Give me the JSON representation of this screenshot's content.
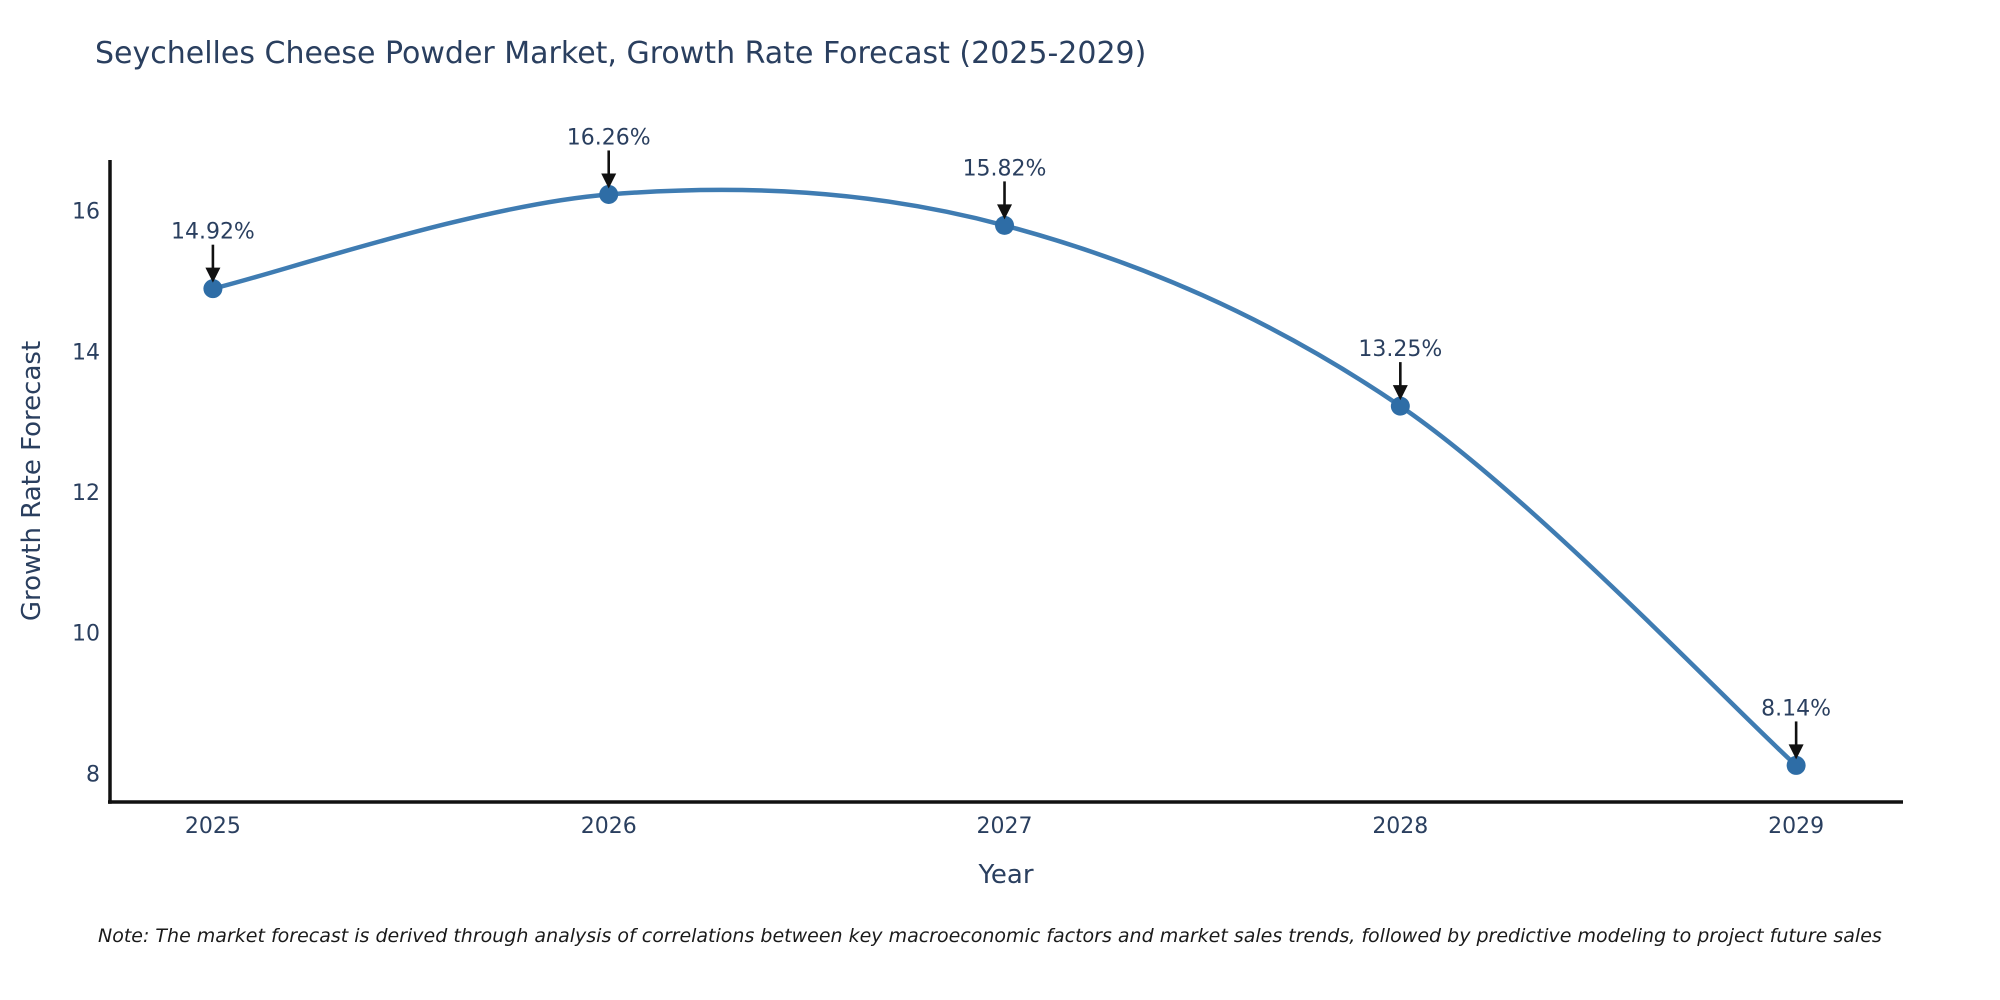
{
  "note": "Note: The market forecast is derived through analysis of correlations between key macroeconomic factors and market sales trends, followed by predictive modeling to project future sales",
  "chart_data": {
    "type": "line",
    "title": "Seychelles Cheese Powder Market, Growth Rate Forecast (2025-2029)",
    "xlabel": "Year",
    "ylabel": "Growth Rate Forecast",
    "x": [
      2025,
      2026,
      2027,
      2028,
      2029
    ],
    "series": [
      {
        "name": "Growth Rate Forecast",
        "values": [
          14.92,
          16.26,
          15.82,
          13.25,
          8.14
        ]
      }
    ],
    "point_labels": [
      "14.92%",
      "16.26%",
      "15.82%",
      "13.25%",
      "8.14%"
    ],
    "xticks": [
      2025,
      2026,
      2027,
      2028,
      2029
    ],
    "yticks": [
      8,
      10,
      12,
      14,
      16
    ],
    "xlim": [
      2024.74,
      2029.27
    ],
    "ylim": [
      7.62,
      16.75
    ],
    "line_shape": "spline",
    "grid": false,
    "legend": false,
    "annotation_style": "value label with black arrow pointing down to marker",
    "colors": {
      "line": "#3f7cb2",
      "marker": "#2e6da6",
      "arrow": "#111111",
      "text": "#2a3f5f",
      "axis": "#111111",
      "note_text": "#1a1a1a",
      "background": "#ffffff"
    }
  }
}
